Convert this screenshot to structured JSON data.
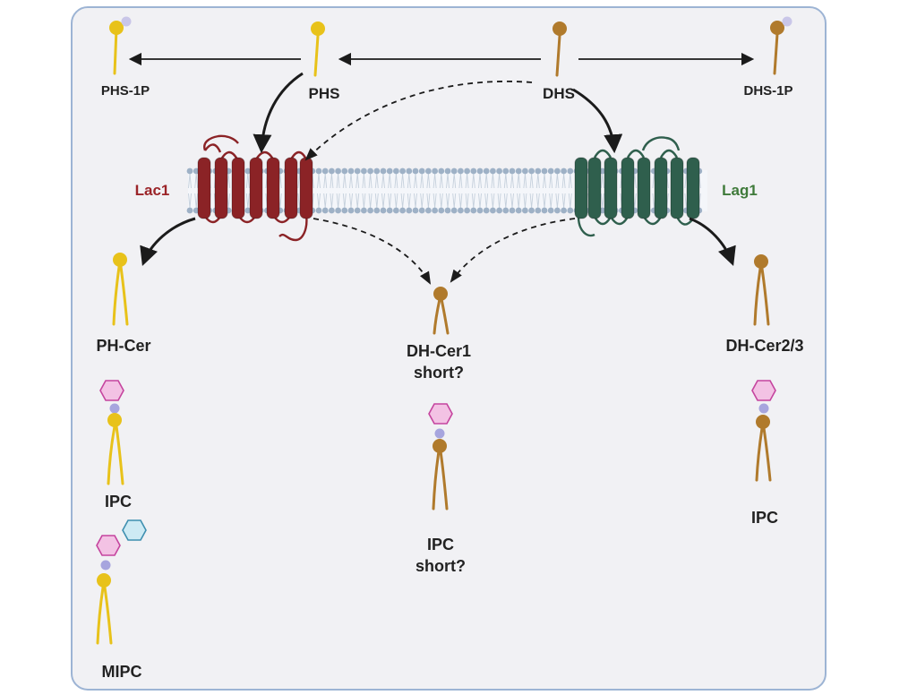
{
  "labels": {
    "phs_1p": "PHS-1P",
    "phs": "PHS",
    "dhs": "DHS",
    "dhs_1p": "DHS-1P",
    "lac1": "Lac1",
    "lag1": "Lag1",
    "ph_cer": "PH-Cer",
    "dh_cer1": "DH-Cer1",
    "dh_cer1_note": "short?",
    "dh_cer23": "DH-Cer2/3",
    "ipc_left": "IPC",
    "mipc": "MIPC",
    "ipc_center": "IPC",
    "ipc_center_note": "short?",
    "ipc_right": "IPC"
  },
  "colors": {
    "phyto_lipid": "#e8c21a",
    "dihydro_lipid": "#b07a2c",
    "phosphate": "#c9c6e8",
    "inositol": "#f3c2e4",
    "inositol_stroke": "#c5449e",
    "mannose": "#cdeaf4",
    "mannose_stroke": "#3e8fb0",
    "linker": "#a7a5de",
    "lac1": "#8b2326",
    "lag1": "#2f5f4d",
    "lac1_label": "#9b2428",
    "lag1_label": "#3f7a3a",
    "membrane_head": "#9eb1c6",
    "panel_border": "#9db4d4"
  }
}
